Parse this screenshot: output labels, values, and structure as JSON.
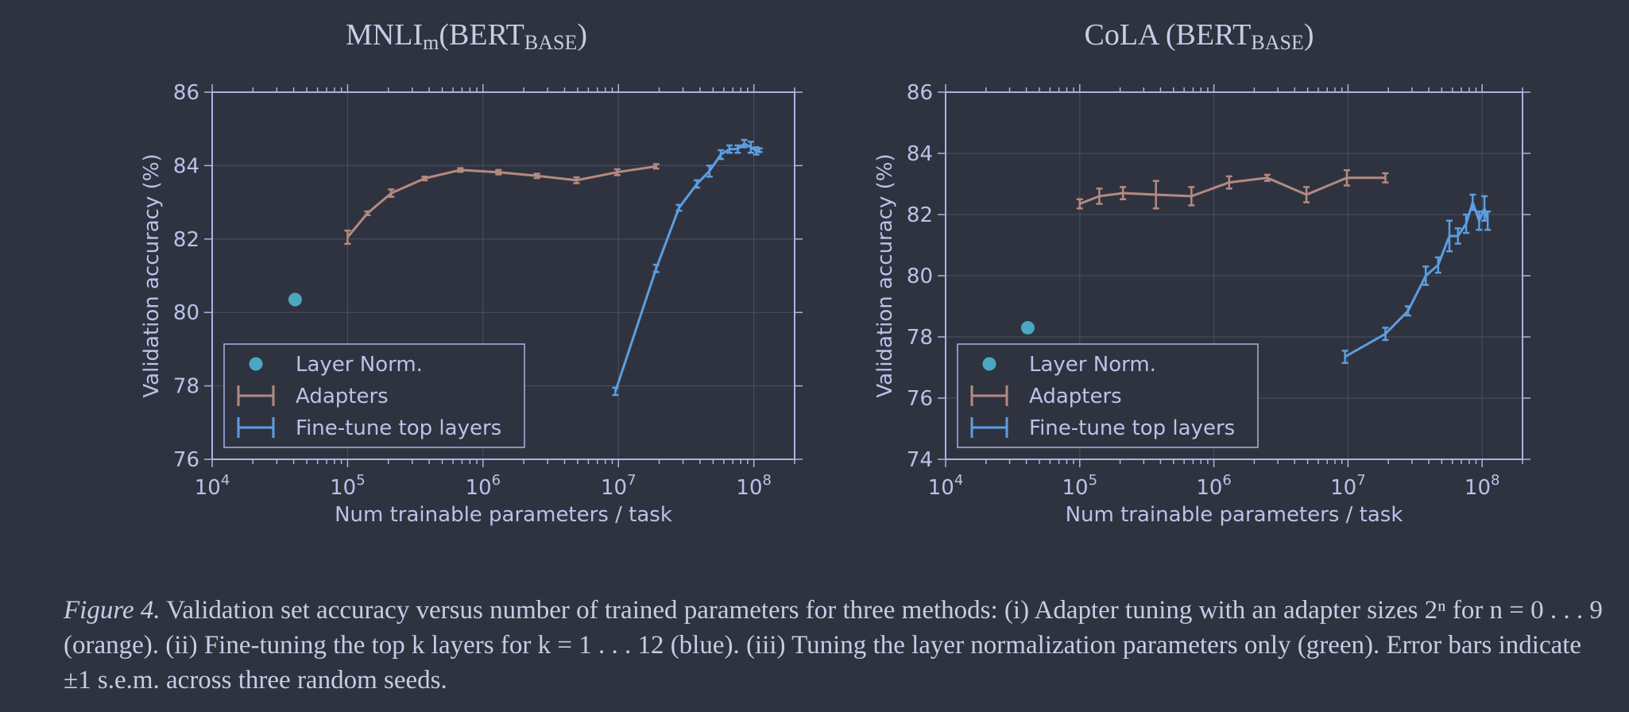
{
  "charts": [
    {
      "title_main": "MNLI",
      "title_sub1": "m",
      "title_mid": "(BERT",
      "title_sub2": "BASE",
      "title_end": ")"
    },
    {
      "title_main": "CoLA (BERT",
      "title_sub1": "BASE",
      "title_end": ")"
    }
  ],
  "chart_data": [
    {
      "type": "line",
      "title": "MNLIm(BERTBASE)",
      "xlabel": "Num trainable parameters / task",
      "ylabel": "Validation accuracy (%)",
      "xscale": "log",
      "xlim": [
        10000,
        200000000
      ],
      "ylim": [
        76,
        86
      ],
      "x_ticks": [
        "10^4",
        "10^5",
        "10^6",
        "10^7",
        "10^8"
      ],
      "y_ticks": [
        "76",
        "78",
        "80",
        "82",
        "84",
        "86"
      ],
      "grid": true,
      "legend_position": "lower-left",
      "legend": [
        "Layer Norm.",
        "Adapters",
        "Fine-tune top layers"
      ],
      "series": [
        {
          "name": "Layer Norm.",
          "color": "#4aa8c0",
          "marker": "dot",
          "points": [
            {
              "x": 41000,
              "y": 80.35
            }
          ]
        },
        {
          "name": "Adapters",
          "color": "#b48a80",
          "marker": "errorbar",
          "points": [
            {
              "x": 100000,
              "y": 82.05,
              "err": 0.18
            },
            {
              "x": 140000,
              "y": 82.7,
              "err": 0.05
            },
            {
              "x": 210000,
              "y": 83.25,
              "err": 0.1
            },
            {
              "x": 370000,
              "y": 83.65,
              "err": 0.05
            },
            {
              "x": 680000,
              "y": 83.88,
              "err": 0.05
            },
            {
              "x": 1300000,
              "y": 83.82,
              "err": 0.06
            },
            {
              "x": 2500000,
              "y": 83.72,
              "err": 0.06
            },
            {
              "x": 4900000,
              "y": 83.6,
              "err": 0.08
            },
            {
              "x": 9800000,
              "y": 83.82,
              "err": 0.08
            },
            {
              "x": 19000000,
              "y": 83.98,
              "err": 0.06
            }
          ]
        },
        {
          "name": "Fine-tune top layers",
          "color": "#5c9ee0",
          "marker": "errorbar",
          "points": [
            {
              "x": 9500000,
              "y": 77.85,
              "err": 0.1
            },
            {
              "x": 19000000,
              "y": 81.2,
              "err": 0.1
            },
            {
              "x": 28000000,
              "y": 82.85,
              "err": 0.08
            },
            {
              "x": 38000000,
              "y": 83.5,
              "err": 0.1
            },
            {
              "x": 47000000,
              "y": 83.85,
              "err": 0.15
            },
            {
              "x": 57000000,
              "y": 84.3,
              "err": 0.12
            },
            {
              "x": 66000000,
              "y": 84.45,
              "err": 0.1
            },
            {
              "x": 76000000,
              "y": 84.45,
              "err": 0.1
            },
            {
              "x": 85000000,
              "y": 84.6,
              "err": 0.1
            },
            {
              "x": 95000000,
              "y": 84.5,
              "err": 0.15
            },
            {
              "x": 104000000,
              "y": 84.4,
              "err": 0.1
            },
            {
              "x": 110000000,
              "y": 84.42,
              "err": 0.05
            }
          ]
        }
      ]
    },
    {
      "type": "line",
      "title": "CoLA (BERTBASE)",
      "xlabel": "Num trainable parameters / task",
      "ylabel": "Validation accuracy (%)",
      "xscale": "log",
      "xlim": [
        10000,
        200000000
      ],
      "ylim": [
        74,
        86
      ],
      "x_ticks": [
        "10^4",
        "10^5",
        "10^6",
        "10^7",
        "10^8"
      ],
      "y_ticks": [
        "74",
        "76",
        "78",
        "80",
        "82",
        "84",
        "86"
      ],
      "grid": true,
      "legend_position": "lower-left",
      "legend": [
        "Layer Norm.",
        "Adapters",
        "Fine-tune top layers"
      ],
      "series": [
        {
          "name": "Layer Norm.",
          "color": "#4aa8c0",
          "marker": "dot",
          "points": [
            {
              "x": 41000,
              "y": 78.3
            }
          ]
        },
        {
          "name": "Adapters",
          "color": "#b48a80",
          "marker": "errorbar",
          "points": [
            {
              "x": 100000,
              "y": 82.35,
              "err": 0.15
            },
            {
              "x": 140000,
              "y": 82.6,
              "err": 0.25
            },
            {
              "x": 210000,
              "y": 82.7,
              "err": 0.2
            },
            {
              "x": 370000,
              "y": 82.65,
              "err": 0.45
            },
            {
              "x": 680000,
              "y": 82.6,
              "err": 0.3
            },
            {
              "x": 1300000,
              "y": 83.05,
              "err": 0.2
            },
            {
              "x": 2500000,
              "y": 83.2,
              "err": 0.1
            },
            {
              "x": 4900000,
              "y": 82.65,
              "err": 0.25
            },
            {
              "x": 9800000,
              "y": 83.2,
              "err": 0.25
            },
            {
              "x": 19000000,
              "y": 83.2,
              "err": 0.15
            }
          ]
        },
        {
          "name": "Fine-tune top layers",
          "color": "#5c9ee0",
          "marker": "errorbar",
          "points": [
            {
              "x": 9500000,
              "y": 77.35,
              "err": 0.2
            },
            {
              "x": 19000000,
              "y": 78.1,
              "err": 0.2
            },
            {
              "x": 28000000,
              "y": 78.85,
              "err": 0.15
            },
            {
              "x": 38000000,
              "y": 80.0,
              "err": 0.3
            },
            {
              "x": 47000000,
              "y": 80.35,
              "err": 0.25
            },
            {
              "x": 57000000,
              "y": 81.3,
              "err": 0.5
            },
            {
              "x": 66000000,
              "y": 81.3,
              "err": 0.25
            },
            {
              "x": 76000000,
              "y": 81.7,
              "err": 0.3
            },
            {
              "x": 85000000,
              "y": 82.4,
              "err": 0.25
            },
            {
              "x": 95000000,
              "y": 81.8,
              "err": 0.3
            },
            {
              "x": 104000000,
              "y": 82.2,
              "err": 0.4
            },
            {
              "x": 110000000,
              "y": 81.8,
              "err": 0.3
            }
          ]
        }
      ]
    }
  ],
  "caption": {
    "label": "Figure 4.",
    "text": "Validation set accuracy versus number of trained parameters for three methods: (i) Adapter tuning with an adapter sizes 2ⁿ for n = 0 . . . 9 (orange). (ii) Fine-tuning the top k layers for k = 1 . . . 12 (blue). (iii) Tuning the layer normalization parameters only (green). Error bars indicate ±1 s.e.m. across three random seeds."
  }
}
